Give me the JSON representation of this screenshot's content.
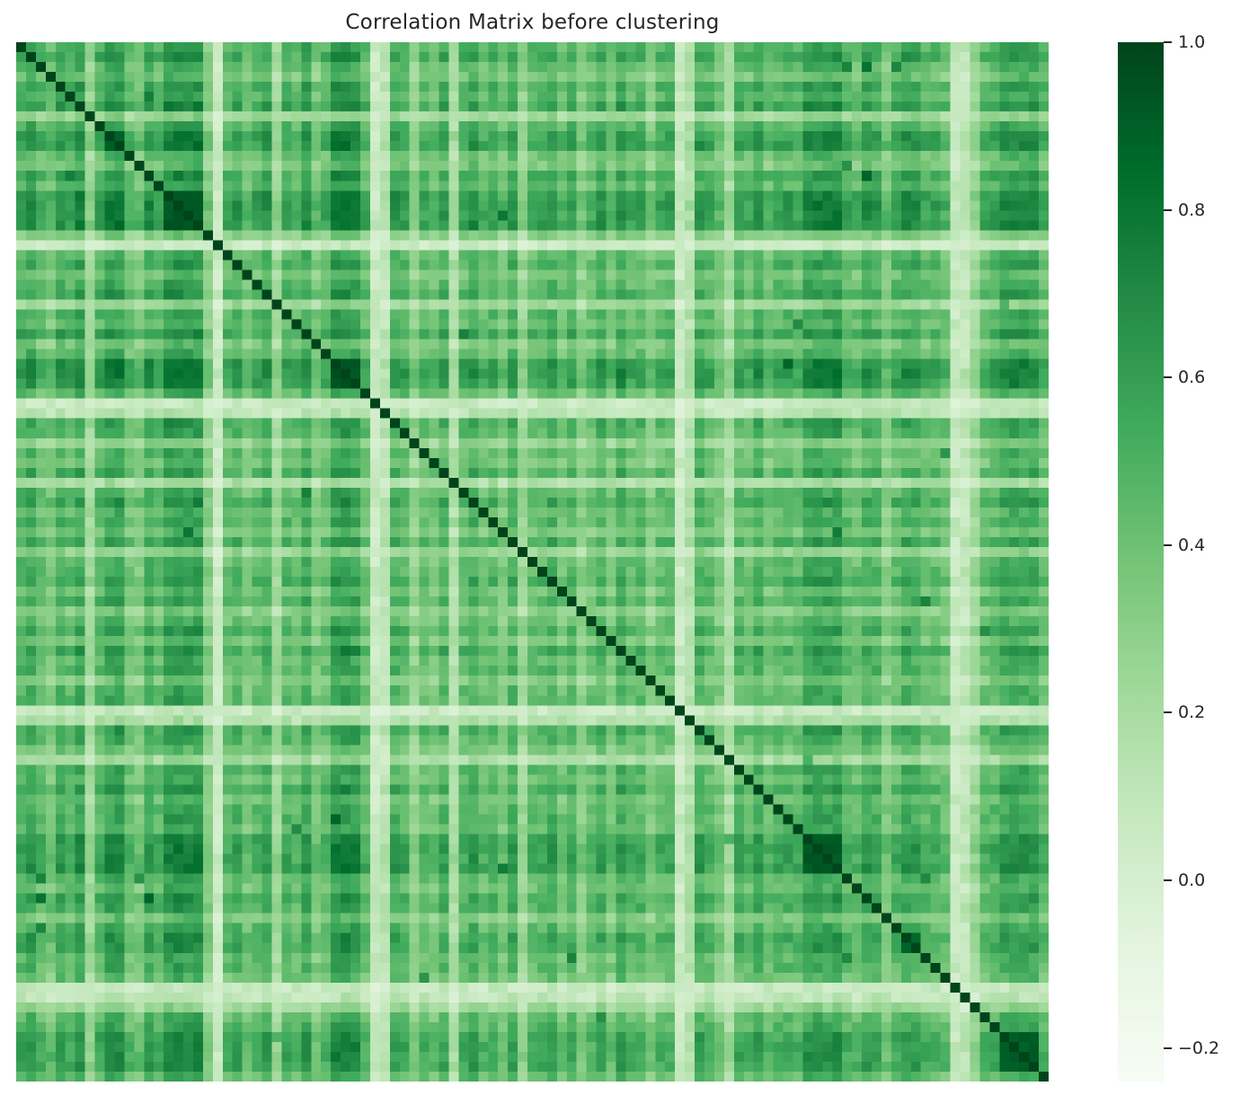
{
  "chart_data": {
    "type": "heatmap",
    "title": "Correlation Matrix before clustering",
    "colormap": "Greens",
    "matrix_size": 105,
    "vmin": -0.24,
    "vmax": 1.0,
    "diagonal_value": 1.0,
    "noise_amplitude": 0.07,
    "grid": false,
    "axis_tick_labels_visible": false,
    "legend_position": "right-colorbar",
    "text_color": "#262626",
    "background_color": "#ffffff",
    "colormap_stops": [
      "#f7fcf5",
      "#e5f5e0",
      "#c7e9c0",
      "#a1d99b",
      "#74c476",
      "#41ab5d",
      "#238b45",
      "#006d2c",
      "#00441b"
    ],
    "colorbar": {
      "ticks": [
        1.0,
        0.8,
        0.6,
        0.4,
        0.2,
        0.0,
        -0.2
      ],
      "tick_labels": [
        "1.0",
        "0.8",
        "0.6",
        "0.4",
        "0.2",
        "0.0",
        "−0.2"
      ]
    },
    "variable_loadings": [
      0.62,
      0.7,
      0.55,
      0.48,
      0.66,
      0.58,
      0.72,
      0.3,
      0.6,
      0.74,
      0.76,
      0.52,
      0.45,
      0.68,
      0.57,
      0.78,
      0.8,
      0.77,
      0.79,
      0.4,
      0.06,
      0.55,
      0.63,
      0.47,
      0.58,
      0.66,
      0.28,
      0.6,
      0.52,
      0.7,
      0.44,
      0.56,
      0.78,
      0.8,
      0.76,
      0.55,
      0.07,
      0.15,
      0.65,
      0.6,
      0.36,
      0.55,
      0.48,
      0.62,
      0.22,
      0.57,
      0.68,
      0.53,
      0.6,
      0.45,
      0.64,
      0.32,
      0.55,
      0.58,
      0.66,
      0.49,
      0.61,
      0.38,
      0.52,
      0.63,
      0.47,
      0.68,
      0.55,
      0.59,
      0.42,
      0.56,
      0.58,
      0.08,
      0.2,
      0.65,
      0.58,
      0.46,
      0.25,
      0.6,
      0.54,
      0.67,
      0.51,
      0.58,
      0.6,
      0.55,
      0.72,
      0.74,
      0.73,
      0.75,
      0.57,
      0.53,
      0.66,
      0.64,
      0.44,
      0.58,
      0.68,
      0.66,
      0.55,
      0.58,
      0.5,
      0.08,
      0.12,
      0.3,
      0.55,
      0.6,
      0.7,
      0.72,
      0.71,
      0.7,
      0.56
    ],
    "diagonal_clusters": [
      {
        "start": 9,
        "end": 10,
        "value": 0.9
      },
      {
        "start": 15,
        "end": 18,
        "value": 0.93
      },
      {
        "start": 32,
        "end": 34,
        "value": 0.94
      },
      {
        "start": 80,
        "end": 83,
        "value": 0.92
      },
      {
        "start": 90,
        "end": 91,
        "value": 0.88
      },
      {
        "start": 100,
        "end": 103,
        "value": 0.9
      }
    ],
    "cross_cluster_links": [
      {
        "rows": [
          15,
          18
        ],
        "cols": [
          32,
          34
        ],
        "value": 0.8
      }
    ]
  }
}
